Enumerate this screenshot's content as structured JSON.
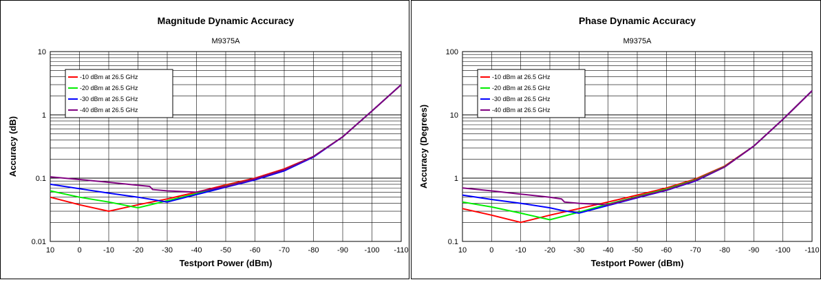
{
  "chart_data": [
    {
      "type": "line",
      "title": "Magnitude Dynamic Accuracy",
      "subtitle": "M9375A",
      "xlabel": "Testport Power (dBm)",
      "ylabel": "Accuracy (dB)",
      "yscale": "log",
      "xlim": [
        10,
        -110
      ],
      "ylim": [
        0.01,
        10
      ],
      "x_ticks": [
        "10",
        "0",
        "-10",
        "-20",
        "-30",
        "-40",
        "-50",
        "-60",
        "-70",
        "-80",
        "-90",
        "-100",
        "-110"
      ],
      "y_ticks": [
        "0.01",
        "0.1",
        "1",
        "10"
      ],
      "grid": true,
      "legend_position": "top-left",
      "series": [
        {
          "name": "-10 dBm at 26.5 GHz",
          "color": "#ff0000",
          "x": [
            10,
            0,
            -10,
            -20,
            -30,
            -40,
            -50,
            -60,
            -70,
            -80,
            -90,
            -100,
            -110
          ],
          "y": [
            0.05,
            0.038,
            0.03,
            0.038,
            0.047,
            0.06,
            0.078,
            0.1,
            0.14,
            0.22,
            0.45,
            1.15,
            3.0
          ]
        },
        {
          "name": "-20 dBm at 26.5 GHz",
          "color": "#00ee00",
          "x": [
            10,
            0,
            -10,
            -20,
            -30,
            -40,
            -50,
            -60,
            -70,
            -80,
            -90,
            -100,
            -110
          ],
          "y": [
            0.063,
            0.05,
            0.042,
            0.034,
            0.044,
            0.057,
            0.075,
            0.097,
            0.135,
            0.22,
            0.45,
            1.15,
            3.0
          ]
        },
        {
          "name": "-30 dBm at 26.5 GHz",
          "color": "#0000ff",
          "x": [
            10,
            0,
            -10,
            -20,
            -30,
            -40,
            -50,
            -60,
            -70,
            -80,
            -90,
            -100,
            -110
          ],
          "y": [
            0.08,
            0.068,
            0.058,
            0.05,
            0.042,
            0.055,
            0.072,
            0.094,
            0.13,
            0.215,
            0.45,
            1.15,
            3.0
          ]
        },
        {
          "name": "-40 dBm at 26.5 GHz",
          "color": "#800080",
          "x": [
            10,
            0,
            -10,
            -20,
            -24,
            -25,
            -30,
            -40,
            -50,
            -60,
            -70,
            -80,
            -90,
            -100,
            -110
          ],
          "y": [
            0.105,
            0.095,
            0.086,
            0.077,
            0.074,
            0.066,
            0.063,
            0.06,
            0.074,
            0.097,
            0.135,
            0.22,
            0.45,
            1.15,
            3.0
          ]
        }
      ]
    },
    {
      "type": "line",
      "title": "Phase Dynamic Accuracy",
      "subtitle": "M9375A",
      "xlabel": "Testport Power (dBm)",
      "ylabel": "Accuracy (Degrees)",
      "yscale": "log",
      "xlim": [
        10,
        -110
      ],
      "ylim": [
        0.1,
        100
      ],
      "x_ticks": [
        "10",
        "0",
        "-10",
        "-20",
        "-30",
        "-40",
        "-50",
        "-60",
        "-70",
        "-80",
        "-90",
        "-100",
        "-110"
      ],
      "y_ticks": [
        "0.1",
        "1",
        "10",
        "100"
      ],
      "grid": true,
      "legend_position": "top-left",
      "series": [
        {
          "name": "-10 dBm at 26.5 GHz",
          "color": "#ff0000",
          "x": [
            10,
            0,
            -10,
            -20,
            -30,
            -40,
            -50,
            -60,
            -70,
            -80,
            -90,
            -100,
            -110
          ],
          "y": [
            0.33,
            0.26,
            0.2,
            0.26,
            0.33,
            0.42,
            0.54,
            0.7,
            0.97,
            1.55,
            3.2,
            8.5,
            24
          ]
        },
        {
          "name": "-20 dBm at 26.5 GHz",
          "color": "#00ee00",
          "x": [
            10,
            0,
            -10,
            -20,
            -30,
            -40,
            -50,
            -60,
            -70,
            -80,
            -90,
            -100,
            -110
          ],
          "y": [
            0.42,
            0.35,
            0.28,
            0.22,
            0.29,
            0.39,
            0.51,
            0.67,
            0.94,
            1.52,
            3.2,
            8.5,
            24
          ]
        },
        {
          "name": "-30 dBm at 26.5 GHz",
          "color": "#0000ff",
          "x": [
            10,
            0,
            -10,
            -20,
            -24,
            -30,
            -40,
            -50,
            -60,
            -70,
            -80,
            -90,
            -100,
            -110
          ],
          "y": [
            0.54,
            0.46,
            0.4,
            0.34,
            0.31,
            0.28,
            0.37,
            0.49,
            0.64,
            0.9,
            1.5,
            3.2,
            8.5,
            24
          ]
        },
        {
          "name": "-40 dBm at 26.5 GHz",
          "color": "#800080",
          "x": [
            10,
            0,
            -10,
            -20,
            -24,
            -25,
            -30,
            -40,
            -50,
            -60,
            -70,
            -80,
            -90,
            -100,
            -110
          ],
          "y": [
            0.7,
            0.63,
            0.56,
            0.5,
            0.47,
            0.42,
            0.4,
            0.38,
            0.5,
            0.65,
            0.92,
            1.5,
            3.2,
            8.5,
            24
          ]
        }
      ]
    }
  ]
}
